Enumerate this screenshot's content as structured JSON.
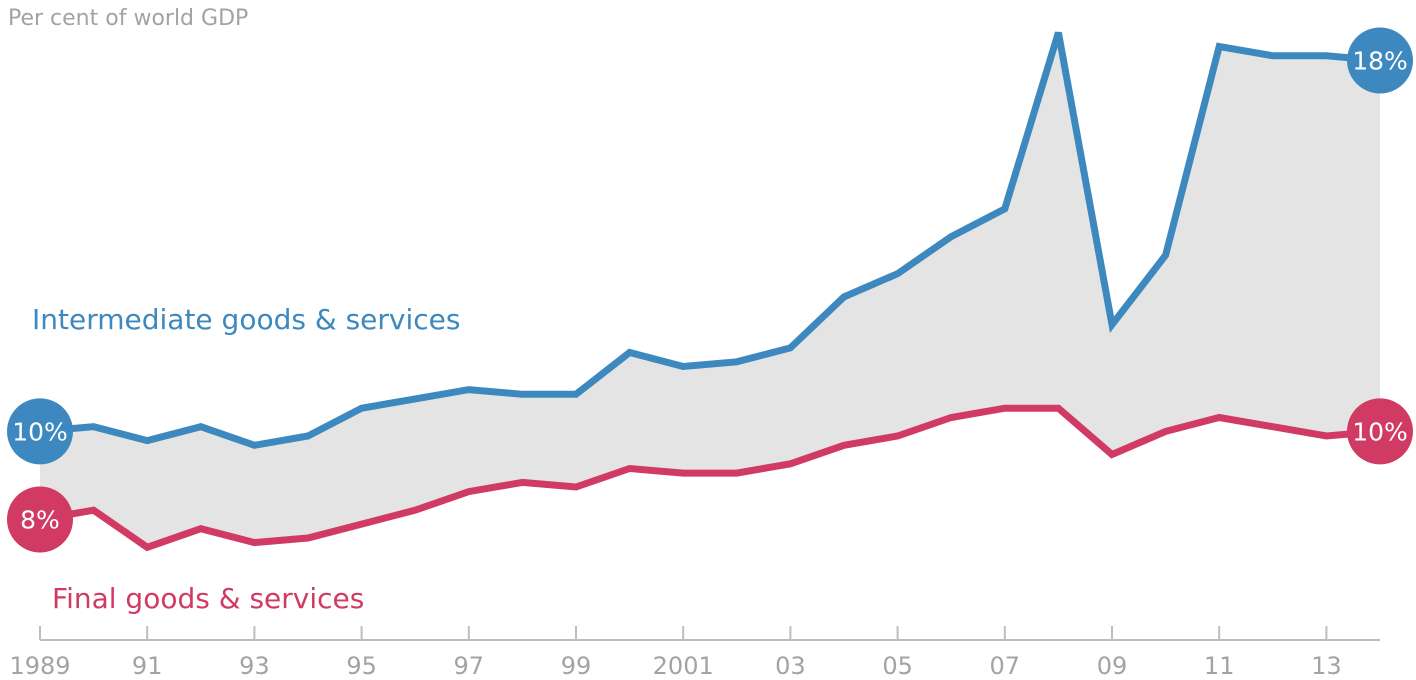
{
  "chart_data": {
    "type": "area",
    "unit_label": "Per cent of world GDP",
    "x": [
      1989,
      1990,
      1991,
      1992,
      1993,
      1994,
      1995,
      1996,
      1997,
      1998,
      1999,
      2000,
      2001,
      2002,
      2003,
      2004,
      2005,
      2006,
      2007,
      2008,
      2009,
      2010,
      2011,
      2012,
      2013,
      2014
    ],
    "x_tick_labels": [
      "1989",
      "91",
      "93",
      "95",
      "97",
      "99",
      "2001",
      "03",
      "05",
      "07",
      "09",
      "11",
      "13"
    ],
    "x_tick_values": [
      1989,
      1991,
      1993,
      1995,
      1997,
      1999,
      2001,
      2003,
      2005,
      2007,
      2009,
      2011,
      2013
    ],
    "ylim": [
      5.5,
      18.7
    ],
    "grid": false,
    "series": [
      {
        "name": "Intermediate goods & services",
        "color": "#3d89bf",
        "start_label": "10%",
        "end_label": "18%",
        "values": [
          10.0,
          10.1,
          9.8,
          10.1,
          9.7,
          9.9,
          10.5,
          10.7,
          10.9,
          10.8,
          10.8,
          11.7,
          11.4,
          11.5,
          11.8,
          12.9,
          13.4,
          14.2,
          14.8,
          18.6,
          12.3,
          13.8,
          18.3,
          18.1,
          18.1,
          18.0
        ]
      },
      {
        "name": "Final goods & services",
        "color": "#d03a63",
        "start_label": "8%",
        "end_label": "10%",
        "values": [
          8.1,
          8.3,
          7.5,
          7.9,
          7.6,
          7.7,
          8.0,
          8.3,
          8.7,
          8.9,
          8.8,
          9.2,
          9.1,
          9.1,
          9.3,
          9.7,
          9.9,
          10.3,
          10.5,
          10.5,
          9.5,
          10.0,
          10.3,
          10.1,
          9.9,
          10.0
        ]
      }
    ],
    "fill_between_color": "#e4e4e4",
    "axis_color": "#bdbdbd",
    "tick_label_color": "#a3a3a3"
  }
}
